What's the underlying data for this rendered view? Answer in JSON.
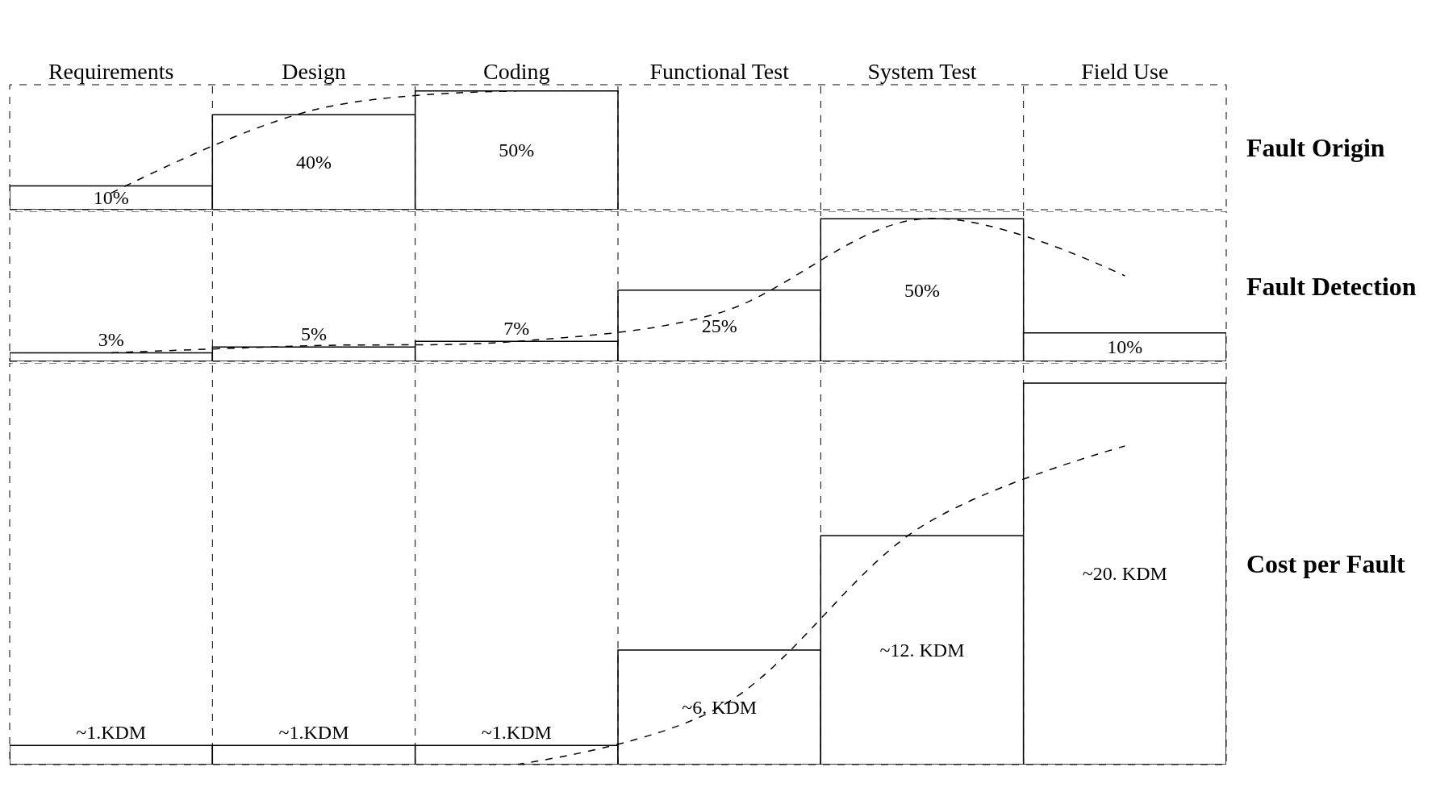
{
  "chart_data": [
    {
      "type": "bar",
      "ylabel": "Fault Origin",
      "categories": [
        "Requirements",
        "Design",
        "Coding",
        "Functional Test",
        "System Test",
        "Field Use"
      ],
      "tick_labels": "x",
      "series": [
        {
          "color": "#ffffff",
          "values": [
            10,
            40,
            50,
            null,
            null,
            null
          ],
          "value_labels": [
            "10%",
            "40%",
            "50%",
            null,
            null,
            null
          ]
        },
        {
          "type": "line",
          "color": "#000000",
          "line_style": "dashed",
          "values": [
            7,
            42,
            50,
            null,
            null,
            null
          ]
        }
      ]
    },
    {
      "type": "bar",
      "ylabel": "Fault Detection",
      "categories": [
        null,
        null,
        null,
        null,
        null,
        null
      ],
      "tick_labels": false,
      "series": [
        {
          "color": "#ffffff",
          "values": [
            3,
            5,
            7,
            25,
            50,
            10
          ],
          "value_labels": [
            "3%",
            "5%",
            "7%",
            "25%",
            "50%",
            "10%"
          ]
        },
        {
          "type": "line",
          "color": "#000000",
          "line_style": "dashed",
          "values": [
            3,
            5.5,
            7,
            17,
            50,
            30
          ]
        }
      ]
    },
    {
      "type": "bar",
      "ylabel": "Cost per Fault",
      "categories": [
        null,
        null,
        null,
        null,
        null,
        null
      ],
      "tick_labels": false,
      "series": [
        {
          "color": "#ffffff",
          "values": [
            1,
            1,
            1,
            6,
            12,
            20
          ],
          "value_labels": [
            "~1.KDM",
            "~1.KDM",
            "~1.KDM",
            "~6. KDM",
            "~12. KDM",
            "~20. KDM"
          ]
        },
        {
          "type": "line",
          "color": "#000000",
          "line_style": "dashed",
          "values": [
            null,
            null,
            0,
            3,
            12.5,
            16.7
          ]
        }
      ]
    }
  ]
}
